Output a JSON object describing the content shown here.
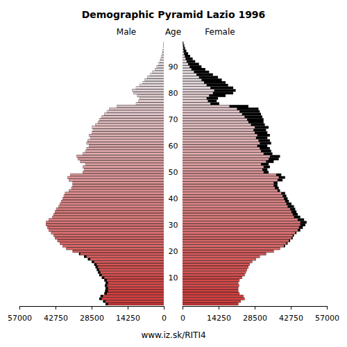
{
  "chart_data": {
    "type": "pyramid",
    "title": "Demographic Pyramid Lazio 1996",
    "y_label": "Age",
    "orientation": "horizontal",
    "annotations": [
      "www.iz.sk/RITI4"
    ],
    "categories": [
      null,
      null,
      null,
      null,
      null,
      null,
      null,
      null,
      null,
      null,
      10,
      null,
      null,
      null,
      null,
      null,
      null,
      null,
      null,
      null,
      20,
      null,
      null,
      null,
      null,
      null,
      null,
      null,
      null,
      null,
      30,
      null,
      null,
      null,
      null,
      null,
      null,
      null,
      null,
      null,
      40,
      null,
      null,
      null,
      null,
      null,
      null,
      null,
      null,
      null,
      50,
      null,
      null,
      null,
      null,
      null,
      null,
      null,
      null,
      null,
      60,
      null,
      null,
      null,
      null,
      null,
      null,
      null,
      null,
      null,
      70,
      null,
      null,
      null,
      null,
      null,
      null,
      null,
      null,
      null,
      80,
      null,
      null,
      null,
      null,
      null,
      null,
      null,
      null,
      null,
      90,
      null,
      null,
      null,
      null,
      null,
      null,
      null,
      null,
      null
    ],
    "xlim": [
      0,
      57000
    ],
    "xticks": [
      0,
      14250,
      28500,
      42750,
      57000
    ],
    "series": [
      {
        "name": "Male",
        "values": [
          23000,
          24000,
          25500,
          25000,
          23500,
          23200,
          23000,
          23300,
          23000,
          23500,
          24500,
          25500,
          26000,
          26500,
          27000,
          27500,
          28500,
          30000,
          31500,
          33500,
          36000,
          38500,
          40000,
          41000,
          42000,
          43000,
          43500,
          44500,
          45500,
          46000,
          46500,
          46500,
          45500,
          44000,
          43500,
          43000,
          42500,
          41500,
          41000,
          40500,
          40000,
          39500,
          39000,
          37500,
          36500,
          36000,
          36000,
          37500,
          38000,
          37000,
          32000,
          31500,
          32000,
          31000,
          33000,
          34000,
          34500,
          32000,
          31000,
          30500,
          29500,
          30500,
          30000,
          29000,
          29500,
          28500,
          28000,
          28500,
          27000,
          26000,
          25500,
          24500,
          23500,
          22500,
          21500,
          18500,
          11000,
          10000,
          9500,
          10500,
          12000,
          12500,
          11000,
          9500,
          8500,
          7500,
          6500,
          5500,
          4500,
          3500,
          2800,
          2200,
          1600,
          1200,
          900,
          600,
          400,
          300,
          200,
          100
        ]
      },
      {
        "name": "Female",
        "values": [
          22000,
          23000,
          24500,
          24000,
          22500,
          22000,
          22000,
          22300,
          22000,
          22500,
          23500,
          24500,
          25000,
          25500,
          26000,
          26500,
          27500,
          29000,
          30500,
          33000,
          36000,
          38500,
          40500,
          41500,
          42500,
          43500,
          44000,
          45000,
          46500,
          47500,
          48500,
          49000,
          48000,
          46500,
          45500,
          45000,
          44500,
          44000,
          43000,
          42000,
          41500,
          41000,
          40500,
          38500,
          38000,
          37500,
          37500,
          39500,
          40500,
          39000,
          34000,
          33500,
          34500,
          34000,
          36000,
          38000,
          38500,
          35500,
          35000,
          34500,
          33500,
          35000,
          34500,
          33500,
          34500,
          33500,
          33000,
          34000,
          32500,
          32000,
          32000,
          31500,
          31000,
          30500,
          30000,
          26000,
          14500,
          13500,
          14000,
          17000,
          20000,
          21000,
          20000,
          18000,
          17000,
          15500,
          14000,
          12000,
          10500,
          9000,
          7500,
          6500,
          5000,
          4000,
          3000,
          2200,
          1500,
          1000,
          700,
          400
        ]
      }
    ]
  }
}
